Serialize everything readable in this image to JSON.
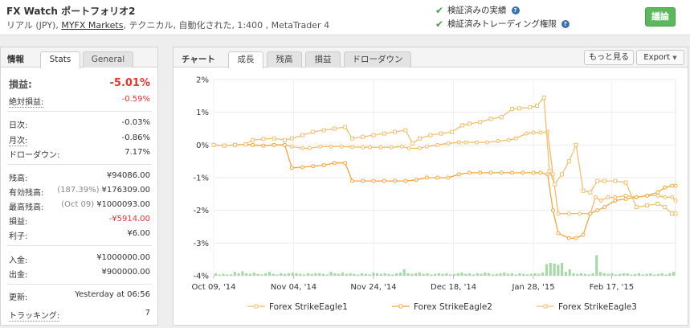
{
  "header": {
    "title": "FX Watch ポートフォリオ2",
    "subtitle_pre": "リアル (JPY), ",
    "subtitle_link": "MYFX Markets",
    "subtitle_post": ", テクニカル, 自動化された, 1:400 , MetaTrader 4",
    "verified_track": "検証済みの実績",
    "verified_privileges": "検証済みトレーディング権限",
    "help_glyph": "?",
    "check_glyph": "✔",
    "discuss_label": "議論",
    "accent_green": "#5cb85c"
  },
  "info": {
    "title": "情報",
    "tab_stats": "Stats",
    "tab_general": "General",
    "gain_label": "損益:",
    "gain_value": "-5.01%",
    "abs_gain_label": "絶対損益:",
    "abs_gain_value": "-0.59%",
    "daily_label": "日次:",
    "daily_value": "-0.03%",
    "monthly_label": "月次:",
    "monthly_value": "-0.86%",
    "drawdown_label": "ドローダウン:",
    "drawdown_value": "7.17%",
    "balance_label": "残高:",
    "balance_value": "¥94086.00",
    "equity_label": "有効残高:",
    "equity_pre": "(187.39%)",
    "equity_value": "¥176309.00",
    "highest_label": "最高残高:",
    "highest_pre": "(Oct 09)",
    "highest_value": "¥1000093.00",
    "profit_label": "損益:",
    "profit_value": "-¥5914.00",
    "interest_label": "利子:",
    "interest_value": "¥6.00",
    "deposits_label": "入金:",
    "deposits_value": "¥1000000.00",
    "withdrawals_label": "出金:",
    "withdrawals_value": "¥900000.00",
    "updated_label": "更新:",
    "updated_value": "Yesterday at 06:56",
    "tracking_label": "トラッキング:",
    "tracking_value": "7",
    "red": "#e8342f"
  },
  "chart_panel": {
    "title": "チャート",
    "tabs": [
      "成長",
      "残高",
      "損益",
      "ドローダウン"
    ],
    "more_label": "もっと見る",
    "export_label": "Export",
    "export_caret": "▼"
  },
  "chart_data": {
    "type": "line",
    "y_ticks": [
      "2%",
      "1%",
      "0%",
      "-1%",
      "-2%",
      "-3%",
      "-4%"
    ],
    "ylim": [
      -4,
      2
    ],
    "x_tick_labels": [
      "Oct 09, '14",
      "Nov 04, '14",
      "Nov 24, '14",
      "Dec 18, '14",
      "Jan 28, '15",
      "Feb 17, '15"
    ],
    "x_tick_positions": [
      0,
      0.225,
      0.45,
      0.675,
      0.9,
      1.12
    ],
    "grid": true,
    "legend_placement": "bottom",
    "colors": [
      "#f7ba5f",
      "#f5a53c",
      "#f3c071"
    ],
    "series": [
      {
        "name": "Forex StrikeEagle1",
        "color": "#f7ba5f",
        "marker": "circle",
        "values": [
          [
            0,
            0
          ],
          [
            0.03,
            -0.02
          ],
          [
            0.06,
            0
          ],
          [
            0.09,
            0.02
          ],
          [
            0.11,
            0
          ],
          [
            0.14,
            -0.02
          ],
          [
            0.17,
            0
          ],
          [
            0.2,
            0
          ],
          [
            0.22,
            -0.05
          ],
          [
            0.25,
            -0.1
          ],
          [
            0.27,
            -0.1
          ],
          [
            0.3,
            -0.05
          ],
          [
            0.33,
            -0.05
          ],
          [
            0.36,
            -0.05
          ],
          [
            0.39,
            -0.06
          ],
          [
            0.42,
            -0.07
          ],
          [
            0.44,
            -0.07
          ],
          [
            0.47,
            -0.07
          ],
          [
            0.5,
            -0.07
          ],
          [
            0.53,
            -0.05
          ],
          [
            0.55,
            -0.1
          ],
          [
            0.58,
            -0.1
          ],
          [
            0.6,
            -0.05
          ],
          [
            0.63,
            0
          ],
          [
            0.66,
            0.05
          ],
          [
            0.69,
            0.08
          ],
          [
            0.71,
            0.08
          ],
          [
            0.74,
            0.08
          ],
          [
            0.77,
            0.08
          ],
          [
            0.8,
            0.12
          ],
          [
            0.83,
            0.15
          ],
          [
            0.85,
            0.2
          ],
          [
            0.88,
            0.35
          ],
          [
            0.9,
            0.38
          ],
          [
            0.92,
            0.38
          ],
          [
            0.94,
            0.4
          ],
          [
            0.955,
            -0.9
          ],
          [
            0.97,
            -2.1
          ],
          [
            1.0,
            -2.1
          ],
          [
            1.03,
            -2.1
          ],
          [
            1.06,
            -2.1
          ],
          [
            1.075,
            -1.6
          ],
          [
            1.09,
            -1.7
          ],
          [
            1.11,
            -1.6
          ],
          [
            1.13,
            -1.6
          ],
          [
            1.16,
            -1.55
          ],
          [
            1.19,
            -1.6
          ],
          [
            1.22,
            -1.55
          ],
          [
            1.25,
            -1.55
          ],
          [
            1.27,
            -1.6
          ],
          [
            1.29,
            -1.6
          ],
          [
            1.3,
            -1.7
          ]
        ]
      },
      {
        "name": "Forex StrikeEagle2",
        "color": "#f5a53c",
        "marker": "circle",
        "values": [
          [
            0,
            0
          ],
          [
            0.03,
            -0.02
          ],
          [
            0.06,
            0
          ],
          [
            0.09,
            0.02
          ],
          [
            0.11,
            0
          ],
          [
            0.14,
            -0.02
          ],
          [
            0.17,
            0
          ],
          [
            0.2,
            0
          ],
          [
            0.22,
            -0.7
          ],
          [
            0.25,
            -0.68
          ],
          [
            0.28,
            -0.65
          ],
          [
            0.31,
            -0.62
          ],
          [
            0.34,
            -0.55
          ],
          [
            0.37,
            -0.55
          ],
          [
            0.39,
            -1.1
          ],
          [
            0.42,
            -1.1
          ],
          [
            0.45,
            -1.1
          ],
          [
            0.48,
            -1.1
          ],
          [
            0.51,
            -1.1
          ],
          [
            0.54,
            -1.1
          ],
          [
            0.57,
            -1.07
          ],
          [
            0.6,
            -1.0
          ],
          [
            0.63,
            -1.0
          ],
          [
            0.66,
            -1.0
          ],
          [
            0.69,
            -0.9
          ],
          [
            0.72,
            -0.85
          ],
          [
            0.75,
            -0.85
          ],
          [
            0.78,
            -0.85
          ],
          [
            0.81,
            -0.85
          ],
          [
            0.84,
            -0.85
          ],
          [
            0.87,
            -0.85
          ],
          [
            0.9,
            -0.85
          ],
          [
            0.92,
            -0.85
          ],
          [
            0.94,
            -0.9
          ],
          [
            0.955,
            -2.0
          ],
          [
            0.97,
            -2.7
          ],
          [
            1.0,
            -2.85
          ],
          [
            1.02,
            -2.85
          ],
          [
            1.04,
            -2.75
          ],
          [
            1.06,
            -2.1
          ],
          [
            1.08,
            -2.0
          ],
          [
            1.1,
            -1.9
          ],
          [
            1.13,
            -1.7
          ],
          [
            1.16,
            -1.65
          ],
          [
            1.19,
            -1.6
          ],
          [
            1.22,
            -1.55
          ],
          [
            1.25,
            -1.45
          ],
          [
            1.27,
            -1.3
          ],
          [
            1.29,
            -1.25
          ],
          [
            1.3,
            -1.25
          ]
        ]
      },
      {
        "name": "Forex StrikeEagle3",
        "color": "#f3c071",
        "marker": "square",
        "values": [
          [
            0,
            0
          ],
          [
            0.03,
            -0.02
          ],
          [
            0.06,
            0
          ],
          [
            0.09,
            0.02
          ],
          [
            0.11,
            0.15
          ],
          [
            0.14,
            0.18
          ],
          [
            0.17,
            0.2
          ],
          [
            0.2,
            0.15
          ],
          [
            0.22,
            0.2
          ],
          [
            0.25,
            0.3
          ],
          [
            0.28,
            0.4
          ],
          [
            0.31,
            0.45
          ],
          [
            0.34,
            0.5
          ],
          [
            0.37,
            0.55
          ],
          [
            0.39,
            0.2
          ],
          [
            0.42,
            0.25
          ],
          [
            0.45,
            0.3
          ],
          [
            0.48,
            0.35
          ],
          [
            0.51,
            0.4
          ],
          [
            0.54,
            0.45
          ],
          [
            0.56,
            0.05
          ],
          [
            0.58,
            0.2
          ],
          [
            0.61,
            0.3
          ],
          [
            0.64,
            0.35
          ],
          [
            0.67,
            0.4
          ],
          [
            0.7,
            0.6
          ],
          [
            0.72,
            0.65
          ],
          [
            0.75,
            0.7
          ],
          [
            0.78,
            0.8
          ],
          [
            0.81,
            0.85
          ],
          [
            0.84,
            1.1
          ],
          [
            0.86,
            1.12
          ],
          [
            0.89,
            1.15
          ],
          [
            0.91,
            1.2
          ],
          [
            0.93,
            1.45
          ],
          [
            0.945,
            -0.8
          ],
          [
            0.96,
            -1.2
          ],
          [
            0.98,
            -0.9
          ],
          [
            1.0,
            -0.5
          ],
          [
            1.02,
            0
          ],
          [
            1.04,
            -1.4
          ],
          [
            1.06,
            -1.45
          ],
          [
            1.08,
            -1.1
          ],
          [
            1.1,
            -1.1
          ],
          [
            1.13,
            -1.1
          ],
          [
            1.16,
            -1.15
          ],
          [
            1.19,
            -1.9
          ],
          [
            1.22,
            -1.85
          ],
          [
            1.25,
            -1.8
          ],
          [
            1.27,
            -1.9
          ],
          [
            1.29,
            -2.1
          ],
          [
            1.3,
            -2.1
          ]
        ]
      }
    ],
    "volume_bars": [
      0.2,
      0.1,
      0.15,
      0.1,
      0.1,
      0.3,
      0.2,
      0.35,
      0.2,
      0.15,
      0.25,
      0.15,
      0.1,
      0.2,
      0.3,
      0.15,
      0.1,
      0.2,
      0.15,
      0.2,
      0.25,
      0.2,
      0.15,
      0.1,
      0.2,
      0.15,
      0.2,
      0.2,
      0.15,
      0.1,
      0.3,
      0.2,
      0.15,
      0.25,
      0.15,
      0.2,
      0.15,
      0.1,
      0.2,
      0.15,
      0.1,
      0.25,
      0.2,
      0.15,
      0.2,
      0.15,
      0.1,
      0.2,
      0.25,
      0.5,
      0.2,
      0.15,
      0.2,
      0.25,
      0.15,
      0.2,
      0.1,
      0.15,
      0.2,
      0.15,
      0.2,
      0.1,
      0.15,
      0.2,
      0.25,
      0.15,
      0.2,
      0.1,
      0.2,
      0.15,
      0.25,
      0.2,
      0.1,
      0.15,
      0.2,
      0.25,
      0.15,
      0.2,
      0.1,
      0.2,
      0.15,
      0.1,
      0.15,
      0.2,
      0.15,
      0.25,
      0.9,
      1.0,
      0.95,
      0.85,
      1.0,
      0.3,
      0.5,
      0.2,
      0.15,
      0.2,
      0.15,
      0.1,
      0.2,
      1.6,
      0.3,
      0.2,
      0.15,
      0.2,
      0.1,
      0.15,
      0.2,
      0.2,
      0.1,
      0.15,
      0.2,
      0.1,
      0.15,
      0.2,
      0.1,
      0.15,
      0.2,
      0.1,
      0.2,
      0.3
    ]
  }
}
